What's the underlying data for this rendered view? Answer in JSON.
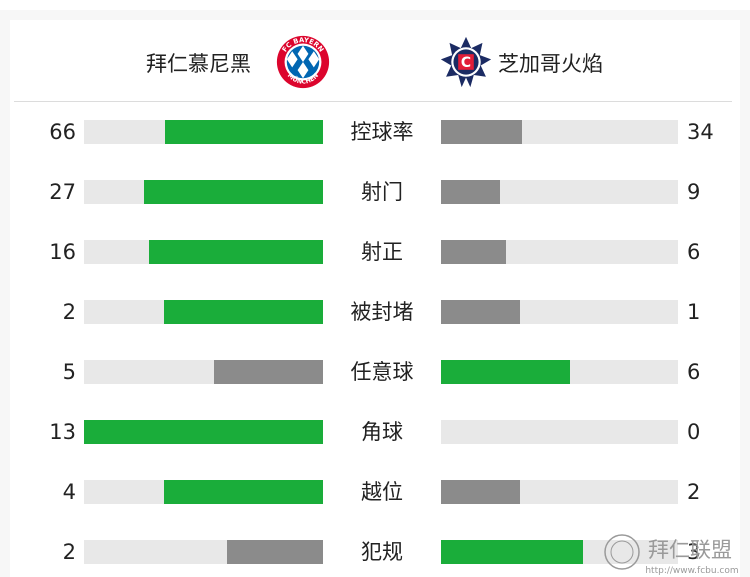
{
  "home_team": {
    "name": "拜仁慕尼黑",
    "logo_text": "FC BAYERN MÜNCHEN"
  },
  "away_team": {
    "name": "芝加哥火焰",
    "logo_text": "CHICAGO FIRE"
  },
  "colors": {
    "leader": "#1aad3a",
    "trailer": "#8b8b8b",
    "track": "#e8e8e8"
  },
  "stats": [
    {
      "label": "控球率",
      "home": "66",
      "away": "34",
      "home_color": "green",
      "away_color": "grey"
    },
    {
      "label": "射门",
      "home": "27",
      "away": "9",
      "home_color": "green",
      "away_color": "grey"
    },
    {
      "label": "射正",
      "home": "16",
      "away": "6",
      "home_color": "green",
      "away_color": "grey"
    },
    {
      "label": "被封堵",
      "home": "2",
      "away": "1",
      "home_color": "green",
      "away_color": "grey"
    },
    {
      "label": "任意球",
      "home": "5",
      "away": "6",
      "home_color": "grey",
      "away_color": "green"
    },
    {
      "label": "角球",
      "home": "13",
      "away": "0",
      "home_color": "green",
      "away_color": "grey"
    },
    {
      "label": "越位",
      "home": "4",
      "away": "2",
      "home_color": "green",
      "away_color": "grey"
    },
    {
      "label": "犯规",
      "home": "2",
      "away": "3",
      "home_color": "grey",
      "away_color": "green"
    }
  ],
  "watermark": {
    "text": "拜仁联盟",
    "url": "http://www.fcbu.com"
  }
}
